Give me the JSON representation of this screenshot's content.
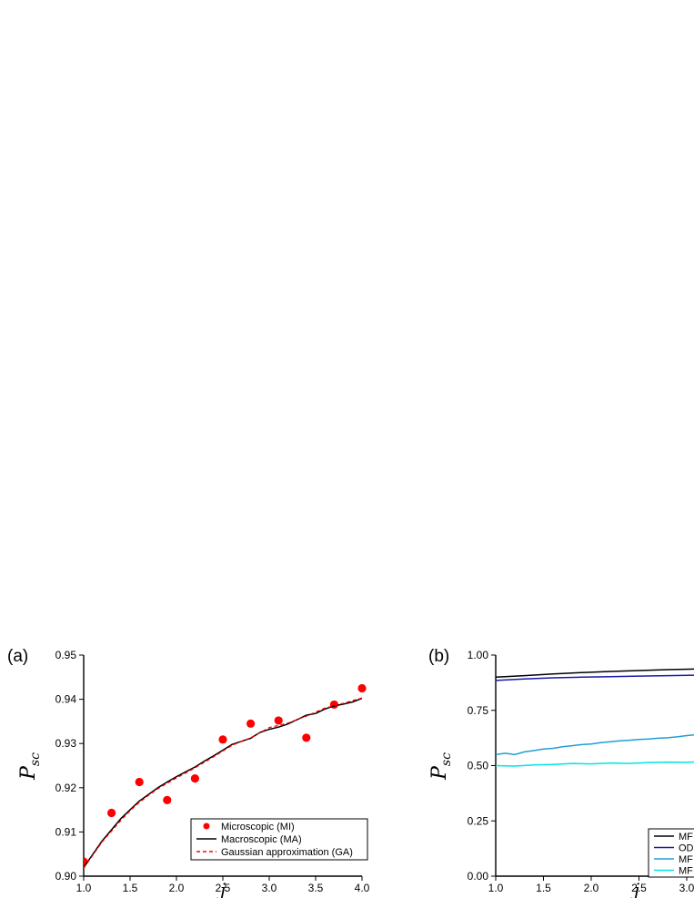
{
  "chart_data": [
    {
      "panel_label": "(a)",
      "type": "line",
      "xlabel": "j",
      "ylabel_main": "P",
      "ylabel_sub": "sc",
      "xlim": [
        1.0,
        4.0
      ],
      "ylim": [
        0.9,
        0.95
      ],
      "xticks": [
        "1.0",
        "1.5",
        "2.0",
        "2.5",
        "3.0",
        "3.5",
        "4.0"
      ],
      "yticks": [
        "0.90",
        "0.91",
        "0.92",
        "0.93",
        "0.94",
        "0.95"
      ],
      "legend_position": "bottom-right",
      "series": [
        {
          "name": "Microscopic (MI)",
          "style": "markers",
          "color": "#ff0000",
          "x": [
            1.0,
            1.3,
            1.6,
            1.9,
            2.2,
            2.5,
            2.8,
            3.1,
            3.4,
            3.7,
            4.0
          ],
          "y": [
            0.9033,
            0.9143,
            0.9213,
            0.9172,
            0.9221,
            0.9309,
            0.9345,
            0.9352,
            0.9313,
            0.9388,
            0.9425
          ]
        },
        {
          "name": "Macroscopic (MA)",
          "style": "solid",
          "color": "#000000",
          "x": [
            1.0,
            1.05,
            1.1,
            1.2,
            1.3,
            1.4,
            1.5,
            1.6,
            1.7,
            1.8,
            1.9,
            2.0,
            2.1,
            2.2,
            2.3,
            2.4,
            2.5,
            2.6,
            2.7,
            2.8,
            2.9,
            3.0,
            3.1,
            3.2,
            3.3,
            3.4,
            3.5,
            3.6,
            3.7,
            3.8,
            3.9,
            4.0
          ],
          "y": [
            0.902,
            0.9035,
            0.905,
            0.908,
            0.9105,
            0.913,
            0.915,
            0.917,
            0.9185,
            0.92,
            0.9213,
            0.9225,
            0.9236,
            0.9247,
            0.926,
            0.9272,
            0.9285,
            0.9298,
            0.9305,
            0.9312,
            0.9325,
            0.9332,
            0.9337,
            0.9344,
            0.9354,
            0.9364,
            0.9368,
            0.9378,
            0.9385,
            0.9389,
            0.9394,
            0.9402
          ]
        },
        {
          "name": "Gaussian approximation (GA)",
          "style": "dashed",
          "color": "#ff0000",
          "x": [
            1.0,
            1.1,
            1.2,
            1.3,
            1.4,
            1.5,
            1.6,
            1.7,
            1.8,
            1.9,
            2.0,
            2.2,
            2.4,
            2.6,
            2.8,
            3.0,
            3.2,
            3.4,
            3.6,
            3.8,
            4.0
          ],
          "y": [
            0.9018,
            0.9048,
            0.9078,
            0.9102,
            0.9126,
            0.9148,
            0.9167,
            0.9183,
            0.9198,
            0.921,
            0.9222,
            0.9245,
            0.927,
            0.9296,
            0.9313,
            0.9336,
            0.9346,
            0.9362,
            0.938,
            0.9391,
            0.9403
          ]
        }
      ]
    },
    {
      "panel_label": "(b)",
      "type": "line",
      "xlabel": "j",
      "ylabel_main": "P",
      "ylabel_sub": "sc",
      "xlim": [
        1.0,
        4.0
      ],
      "ylim": [
        0.0,
        1.0
      ],
      "xticks": [
        "1.0",
        "1.5",
        "2.0",
        "2.5",
        "3.0"
      ],
      "yticks": [
        "0.00",
        "0.25",
        "0.50",
        "0.75",
        "1.00"
      ],
      "legend_position": "bottom-right",
      "series": [
        {
          "name": "MF",
          "style": "solid",
          "color": "#000000",
          "x": [
            1.0,
            1.3,
            1.6,
            1.9,
            2.2,
            2.5,
            2.8,
            3.1
          ],
          "y": [
            0.9,
            0.907,
            0.915,
            0.921,
            0.926,
            0.93,
            0.934,
            0.937
          ]
        },
        {
          "name": "OD",
          "style": "solid",
          "color": "#1a1aa6",
          "x": [
            1.0,
            1.3,
            1.6,
            1.9,
            2.2,
            2.5,
            2.8,
            3.1
          ],
          "y": [
            0.885,
            0.892,
            0.897,
            0.9,
            0.902,
            0.905,
            0.907,
            0.909
          ]
        },
        {
          "name": "MF",
          "style": "solid",
          "color": "#1f9fd6",
          "x": [
            1.0,
            1.1,
            1.2,
            1.3,
            1.4,
            1.5,
            1.6,
            1.7,
            1.8,
            1.9,
            2.0,
            2.1,
            2.2,
            2.3,
            2.4,
            2.5,
            2.6,
            2.7,
            2.8,
            2.9,
            3.0,
            3.1
          ],
          "y": [
            0.55,
            0.556,
            0.55,
            0.562,
            0.568,
            0.575,
            0.578,
            0.585,
            0.59,
            0.595,
            0.598,
            0.604,
            0.608,
            0.612,
            0.615,
            0.618,
            0.62,
            0.624,
            0.626,
            0.63,
            0.636,
            0.64
          ]
        },
        {
          "name": "MF",
          "style": "solid",
          "color": "#00e5e5",
          "x": [
            1.0,
            1.2,
            1.4,
            1.6,
            1.8,
            2.0,
            2.2,
            2.4,
            2.6,
            2.8,
            3.0,
            3.1
          ],
          "y": [
            0.5,
            0.498,
            0.503,
            0.505,
            0.51,
            0.508,
            0.512,
            0.51,
            0.514,
            0.516,
            0.515,
            0.517
          ]
        }
      ]
    }
  ]
}
